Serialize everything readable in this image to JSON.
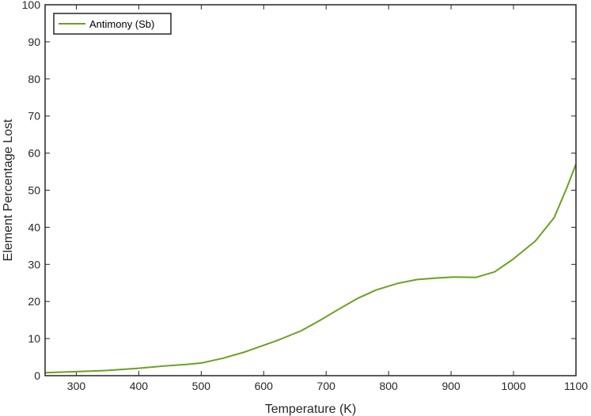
{
  "chart_data": {
    "type": "line",
    "xlabel": "Temperature (K)",
    "ylabel": "Element Percentage Lost",
    "xlim": [
      250,
      1100
    ],
    "ylim": [
      0,
      100
    ],
    "xticks": [
      300,
      400,
      500,
      600,
      700,
      800,
      900,
      1000,
      1100
    ],
    "yticks": [
      0,
      10,
      20,
      30,
      40,
      50,
      60,
      70,
      80,
      90,
      100
    ],
    "grid": false,
    "legend_position": "top-left",
    "series": [
      {
        "name": "Antimony (Sb)",
        "color": "#6aa121",
        "x": [
          250,
          300,
          350,
          400,
          440,
          475,
          500,
          535,
          570,
          600,
          625,
          660,
          690,
          720,
          750,
          780,
          815,
          845,
          875,
          905,
          940,
          970,
          1000,
          1035,
          1065,
          1085,
          1100
        ],
        "y": [
          0.8,
          1.1,
          1.4,
          2.0,
          2.6,
          3.0,
          3.4,
          4.7,
          6.4,
          8.2,
          9.7,
          12.1,
          14.9,
          17.9,
          20.8,
          23.1,
          24.9,
          25.9,
          26.3,
          26.6,
          26.5,
          28.0,
          31.5,
          36.3,
          42.6,
          50.5,
          57.0
        ]
      }
    ]
  }
}
